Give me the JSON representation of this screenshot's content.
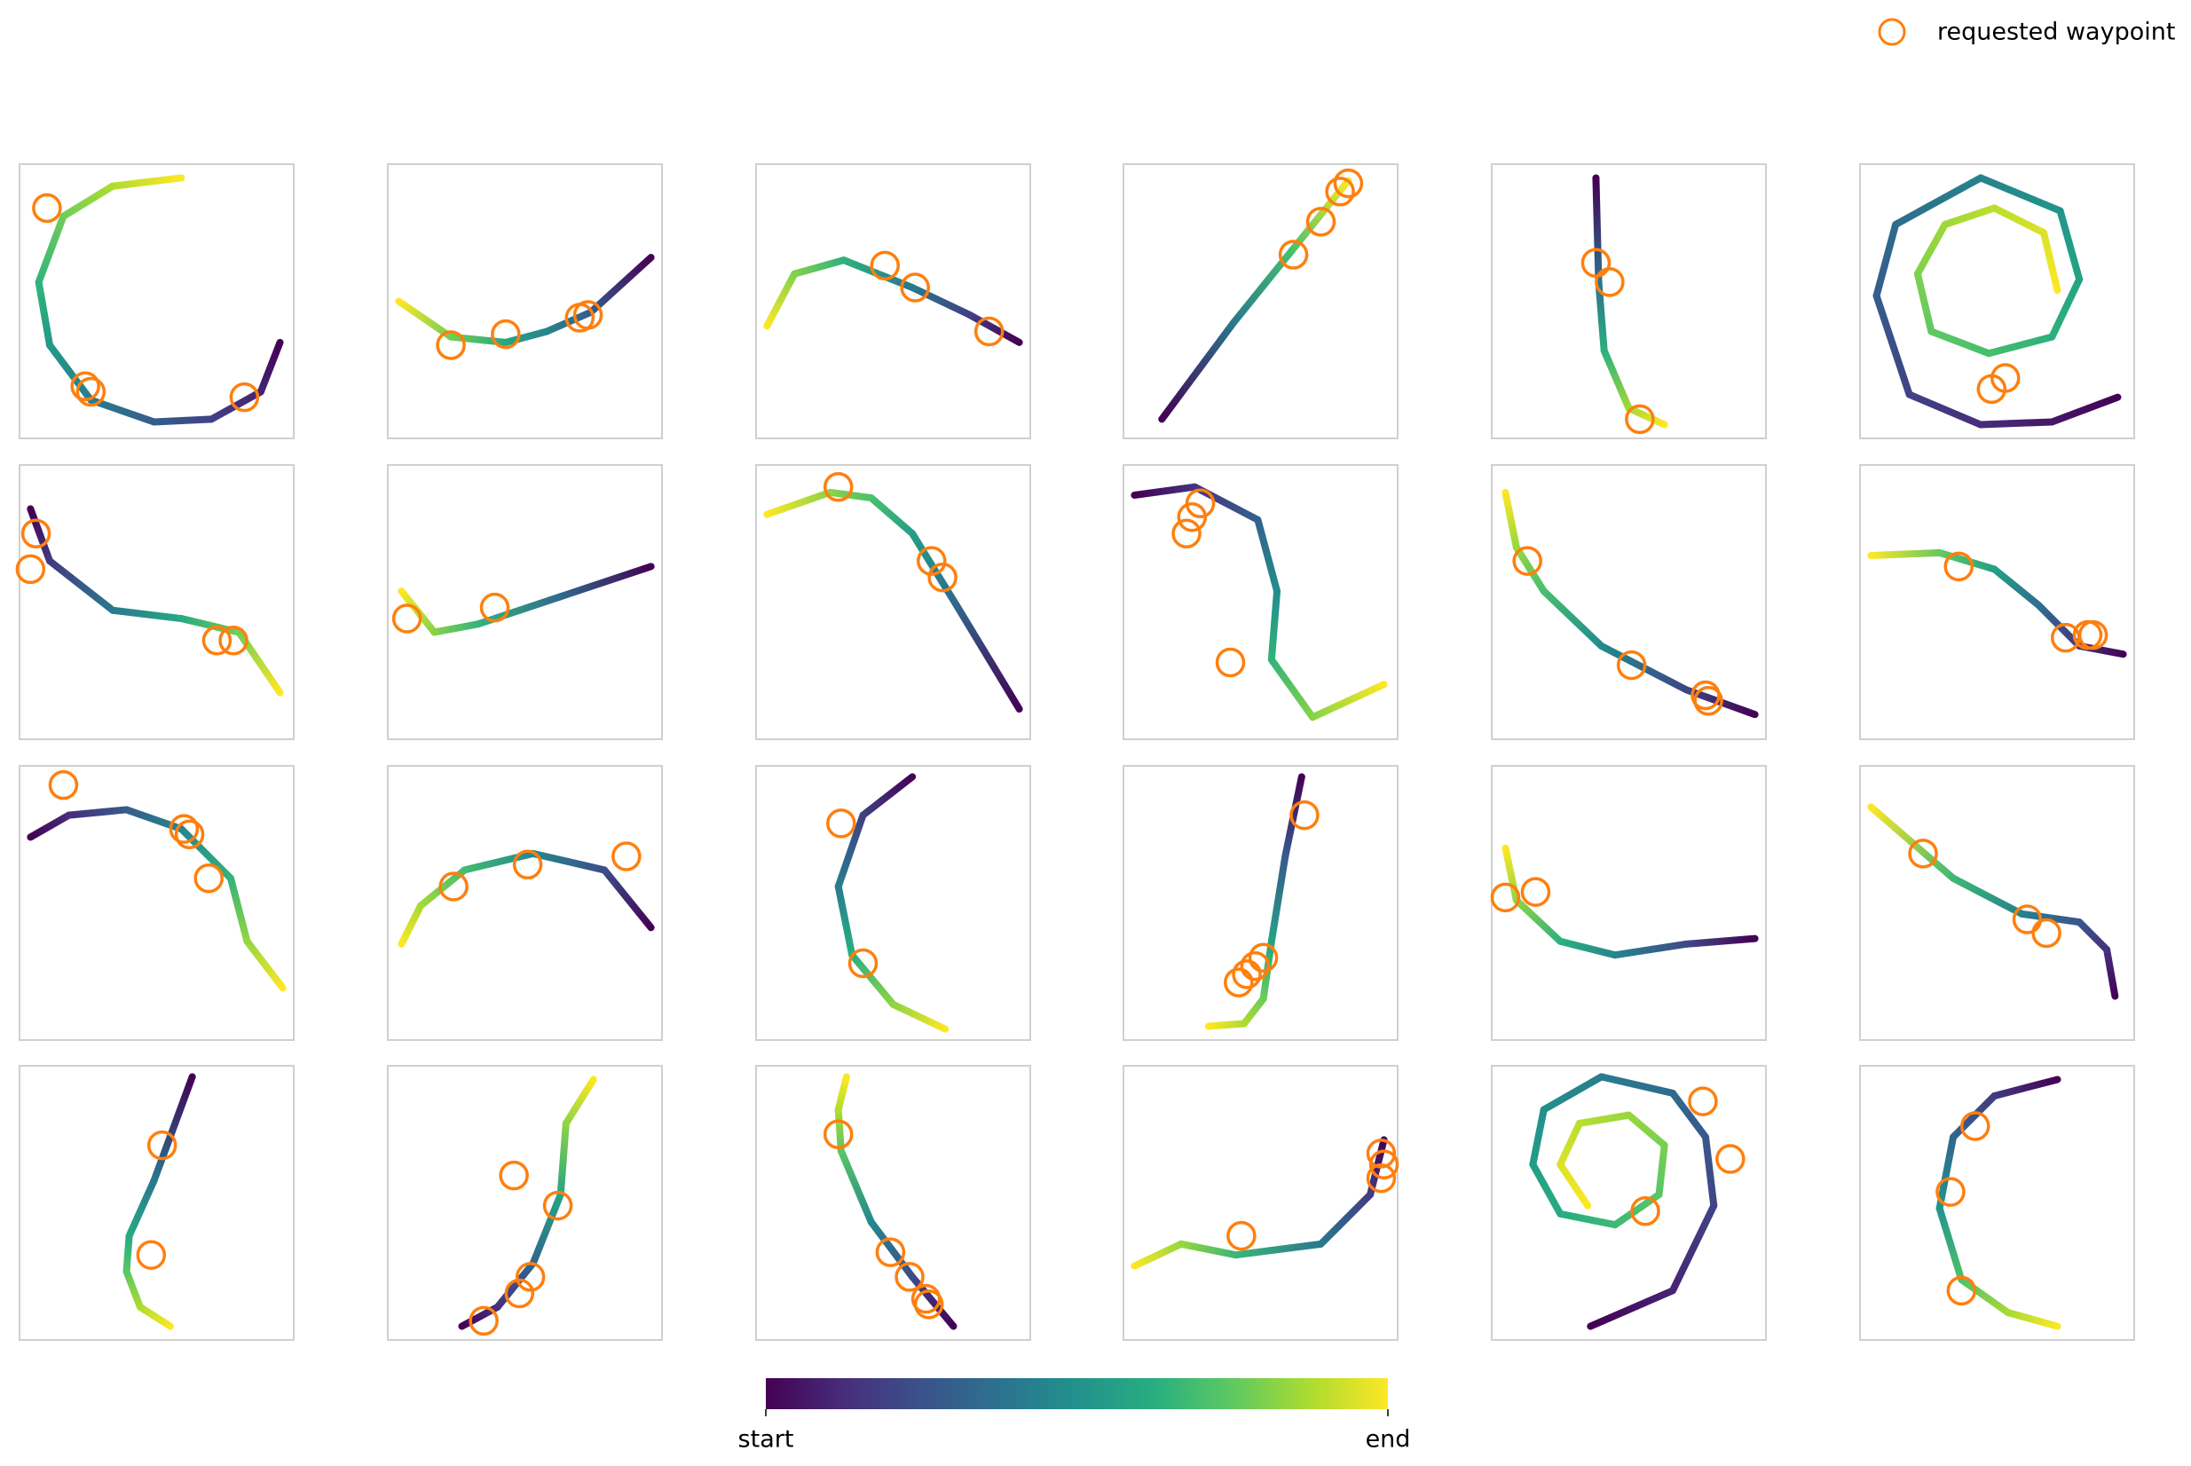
{
  "chart_data": [
    {
      "type": "line",
      "x": [
        0.95,
        0.88,
        0.7,
        0.49,
        0.26,
        0.11,
        0.07,
        0.16,
        0.34,
        0.59
      ],
      "y": [
        0.35,
        0.17,
        0.07,
        0.06,
        0.14,
        0.34,
        0.57,
        0.81,
        0.92,
        0.95
      ],
      "waypoints": {
        "x": [
          0.1,
          0.24,
          0.26,
          0.82
        ],
        "y": [
          0.84,
          0.19,
          0.17,
          0.15
        ]
      },
      "xlim": [
        0,
        1
      ],
      "ylim": [
        0,
        1
      ]
    },
    {
      "type": "line",
      "x": [
        0.96,
        0.74,
        0.58,
        0.43,
        0.23,
        0.04
      ],
      "y": [
        0.66,
        0.46,
        0.39,
        0.35,
        0.37,
        0.5
      ],
      "waypoints": {
        "x": [
          0.23,
          0.43,
          0.7,
          0.73
        ],
        "y": [
          0.34,
          0.38,
          0.44,
          0.45
        ]
      },
      "xlim": [
        0,
        1
      ],
      "ylim": [
        0,
        1
      ]
    },
    {
      "type": "line",
      "x": [
        0.96,
        0.78,
        0.57,
        0.32,
        0.14,
        0.04
      ],
      "y": [
        0.35,
        0.45,
        0.55,
        0.65,
        0.6,
        0.41
      ],
      "waypoints": {
        "x": [
          0.47,
          0.58,
          0.85
        ],
        "y": [
          0.63,
          0.55,
          0.39
        ]
      },
      "xlim": [
        0,
        1
      ],
      "ylim": [
        0,
        1
      ]
    },
    {
      "type": "line",
      "x": [
        0.14,
        0.4,
        0.61,
        0.82
      ],
      "y": [
        0.07,
        0.42,
        0.68,
        0.94
      ],
      "waypoints": {
        "x": [
          0.62,
          0.72,
          0.79,
          0.82
        ],
        "y": [
          0.67,
          0.79,
          0.9,
          0.93
        ]
      },
      "xlim": [
        0,
        1
      ],
      "ylim": [
        0,
        1
      ]
    },
    {
      "type": "line",
      "x": [
        0.38,
        0.39,
        0.41,
        0.5,
        0.63
      ],
      "y": [
        0.95,
        0.57,
        0.32,
        0.11,
        0.05
      ],
      "waypoints": {
        "x": [
          0.38,
          0.43,
          0.54
        ],
        "y": [
          0.64,
          0.57,
          0.07
        ]
      },
      "xlim": [
        0,
        1
      ],
      "ylim": [
        0,
        1
      ]
    },
    {
      "type": "line",
      "x": [
        0.94,
        0.7,
        0.44,
        0.18,
        0.06,
        0.13,
        0.44,
        0.73,
        0.8,
        0.7,
        0.47,
        0.26,
        0.21,
        0.31,
        0.49,
        0.67,
        0.72
      ],
      "y": [
        0.15,
        0.06,
        0.05,
        0.16,
        0.52,
        0.78,
        0.95,
        0.83,
        0.58,
        0.37,
        0.31,
        0.39,
        0.6,
        0.78,
        0.84,
        0.75,
        0.54
      ],
      "waypoints": {
        "x": [
          0.48,
          0.53
        ],
        "y": [
          0.18,
          0.22
        ]
      },
      "xlim": [
        0,
        1
      ],
      "ylim": [
        0,
        1
      ]
    },
    {
      "type": "line",
      "x": [
        0.04,
        0.11,
        0.34,
        0.59,
        0.8,
        0.95
      ],
      "y": [
        0.84,
        0.65,
        0.47,
        0.44,
        0.39,
        0.17
      ],
      "waypoints": {
        "x": [
          0.06,
          0.04,
          0.72,
          0.78
        ],
        "y": [
          0.75,
          0.62,
          0.36,
          0.36
        ]
      },
      "xlim": [
        0,
        1
      ],
      "ylim": [
        0,
        1
      ]
    },
    {
      "type": "line",
      "x": [
        0.96,
        0.63,
        0.33,
        0.17,
        0.05
      ],
      "y": [
        0.63,
        0.52,
        0.42,
        0.39,
        0.54
      ],
      "waypoints": {
        "x": [
          0.07,
          0.39
        ],
        "y": [
          0.44,
          0.48
        ]
      },
      "xlim": [
        0,
        1
      ],
      "ylim": [
        0,
        1
      ]
    },
    {
      "type": "line",
      "x": [
        0.96,
        0.73,
        0.57,
        0.42,
        0.27,
        0.04
      ],
      "y": [
        0.11,
        0.49,
        0.75,
        0.88,
        0.9,
        0.82
      ],
      "waypoints": {
        "x": [
          0.3,
          0.64,
          0.68
        ],
        "y": [
          0.92,
          0.65,
          0.59
        ]
      },
      "xlim": [
        0,
        1
      ],
      "ylim": [
        0,
        1
      ]
    },
    {
      "type": "line",
      "x": [
        0.04,
        0.26,
        0.49,
        0.56,
        0.54,
        0.69,
        0.95
      ],
      "y": [
        0.89,
        0.92,
        0.8,
        0.54,
        0.29,
        0.08,
        0.2
      ],
      "waypoints": {
        "x": [
          0.23,
          0.25,
          0.28,
          0.39
        ],
        "y": [
          0.75,
          0.81,
          0.86,
          0.28
        ]
      },
      "xlim": [
        0,
        1
      ],
      "ylim": [
        0,
        1
      ]
    },
    {
      "type": "line",
      "x": [
        0.96,
        0.71,
        0.4,
        0.19,
        0.09,
        0.05
      ],
      "y": [
        0.09,
        0.18,
        0.34,
        0.54,
        0.7,
        0.9
      ],
      "waypoints": {
        "x": [
          0.13,
          0.51,
          0.78,
          0.79
        ],
        "y": [
          0.65,
          0.27,
          0.16,
          0.14
        ]
      },
      "xlim": [
        0,
        1
      ],
      "ylim": [
        0,
        1
      ]
    },
    {
      "type": "line",
      "x": [
        0.96,
        0.8,
        0.65,
        0.49,
        0.29,
        0.04
      ],
      "y": [
        0.31,
        0.34,
        0.49,
        0.62,
        0.68,
        0.67
      ],
      "waypoints": {
        "x": [
          0.36,
          0.75,
          0.83,
          0.85
        ],
        "y": [
          0.63,
          0.37,
          0.38,
          0.38
        ]
      },
      "xlim": [
        0,
        1
      ],
      "ylim": [
        0,
        1
      ]
    },
    {
      "type": "line",
      "x": [
        0.04,
        0.18,
        0.39,
        0.59,
        0.77,
        0.83,
        0.96
      ],
      "y": [
        0.74,
        0.82,
        0.84,
        0.77,
        0.59,
        0.36,
        0.19
      ],
      "waypoints": {
        "x": [
          0.16,
          0.6,
          0.62,
          0.69
        ],
        "y": [
          0.93,
          0.77,
          0.75,
          0.59
        ]
      },
      "xlim": [
        0,
        1
      ],
      "ylim": [
        0,
        1
      ]
    },
    {
      "type": "line",
      "x": [
        0.96,
        0.79,
        0.53,
        0.28,
        0.12,
        0.05
      ],
      "y": [
        0.41,
        0.62,
        0.68,
        0.62,
        0.49,
        0.35
      ],
      "waypoints": {
        "x": [
          0.24,
          0.51,
          0.87
        ],
        "y": [
          0.56,
          0.64,
          0.67
        ]
      },
      "xlim": [
        0,
        1
      ],
      "ylim": [
        0,
        1
      ]
    },
    {
      "type": "line",
      "x": [
        0.57,
        0.39,
        0.3,
        0.35,
        0.5,
        0.69
      ],
      "y": [
        0.96,
        0.82,
        0.56,
        0.31,
        0.13,
        0.04
      ],
      "waypoints": {
        "x": [
          0.31,
          0.39
        ],
        "y": [
          0.79,
          0.28
        ]
      },
      "xlim": [
        0,
        1
      ],
      "ylim": [
        0,
        1
      ]
    },
    {
      "type": "line",
      "x": [
        0.65,
        0.59,
        0.54,
        0.51,
        0.44,
        0.31
      ],
      "y": [
        0.96,
        0.67,
        0.36,
        0.15,
        0.06,
        0.05
      ],
      "waypoints": {
        "x": [
          0.66,
          0.51,
          0.48,
          0.45,
          0.42
        ],
        "y": [
          0.82,
          0.3,
          0.27,
          0.24,
          0.21
        ]
      },
      "xlim": [
        0,
        1
      ],
      "ylim": [
        0,
        1
      ]
    },
    {
      "type": "line",
      "x": [
        0.96,
        0.71,
        0.45,
        0.25,
        0.09,
        0.05
      ],
      "y": [
        0.37,
        0.35,
        0.31,
        0.36,
        0.51,
        0.7
      ],
      "waypoints": {
        "x": [
          0.05,
          0.16
        ],
        "y": [
          0.52,
          0.54
        ]
      },
      "xlim": [
        0,
        1
      ],
      "ylim": [
        0,
        1
      ]
    },
    {
      "type": "line",
      "x": [
        0.93,
        0.9,
        0.8,
        0.59,
        0.34,
        0.04
      ],
      "y": [
        0.16,
        0.33,
        0.43,
        0.46,
        0.59,
        0.85
      ],
      "waypoints": {
        "x": [
          0.23,
          0.61,
          0.68
        ],
        "y": [
          0.68,
          0.44,
          0.39
        ]
      },
      "xlim": [
        0,
        1
      ],
      "ylim": [
        0,
        1
      ]
    },
    {
      "type": "line",
      "x": [
        0.63,
        0.49,
        0.4,
        0.39,
        0.44,
        0.55
      ],
      "y": [
        0.96,
        0.58,
        0.38,
        0.25,
        0.12,
        0.05
      ],
      "waypoints": {
        "x": [
          0.52,
          0.48
        ],
        "y": [
          0.71,
          0.31
        ]
      },
      "xlim": [
        0,
        1
      ],
      "ylim": [
        0,
        1
      ]
    },
    {
      "type": "line",
      "x": [
        0.27,
        0.4,
        0.53,
        0.63,
        0.65,
        0.75
      ],
      "y": [
        0.05,
        0.12,
        0.28,
        0.53,
        0.79,
        0.95
      ],
      "waypoints": {
        "x": [
          0.35,
          0.48,
          0.52,
          0.62,
          0.46
        ],
        "y": [
          0.07,
          0.17,
          0.23,
          0.49,
          0.6
        ]
      },
      "xlim": [
        0,
        1
      ],
      "ylim": [
        0,
        1
      ]
    },
    {
      "type": "line",
      "x": [
        0.72,
        0.57,
        0.42,
        0.31,
        0.3,
        0.33
      ],
      "y": [
        0.05,
        0.23,
        0.43,
        0.69,
        0.84,
        0.96
      ],
      "waypoints": {
        "x": [
          0.3,
          0.49,
          0.56,
          0.62,
          0.63
        ],
        "y": [
          0.75,
          0.32,
          0.23,
          0.15,
          0.13
        ]
      },
      "xlim": [
        0,
        1
      ],
      "ylim": [
        0,
        1
      ]
    },
    {
      "type": "line",
      "x": [
        0.95,
        0.9,
        0.72,
        0.41,
        0.21,
        0.04
      ],
      "y": [
        0.73,
        0.53,
        0.35,
        0.31,
        0.35,
        0.27
      ],
      "waypoints": {
        "x": [
          0.43,
          0.94,
          0.95,
          0.94
        ],
        "y": [
          0.38,
          0.68,
          0.64,
          0.59
        ]
      },
      "xlim": [
        0,
        1
      ],
      "ylim": [
        0,
        1
      ]
    },
    {
      "type": "line",
      "x": [
        0.36,
        0.66,
        0.81,
        0.78,
        0.66,
        0.4,
        0.19,
        0.15,
        0.25,
        0.45,
        0.61,
        0.63,
        0.5,
        0.32,
        0.25,
        0.35
      ],
      "y": [
        0.05,
        0.18,
        0.49,
        0.74,
        0.9,
        0.96,
        0.84,
        0.64,
        0.46,
        0.42,
        0.53,
        0.71,
        0.82,
        0.79,
        0.64,
        0.49
      ],
      "waypoints": {
        "x": [
          0.77,
          0.87,
          0.56
        ],
        "y": [
          0.87,
          0.66,
          0.47
        ]
      },
      "xlim": [
        0,
        1
      ],
      "ylim": [
        0,
        1
      ]
    },
    {
      "type": "line",
      "x": [
        0.72,
        0.49,
        0.34,
        0.29,
        0.37,
        0.54,
        0.72
      ],
      "y": [
        0.95,
        0.89,
        0.74,
        0.48,
        0.22,
        0.1,
        0.05
      ],
      "waypoints": {
        "x": [
          0.42,
          0.33,
          0.37
        ],
        "y": [
          0.78,
          0.54,
          0.18
        ]
      },
      "xlim": [
        0,
        1
      ],
      "ylim": [
        0,
        1
      ]
    }
  ],
  "legend": {
    "name": "requested waypoint",
    "color": "#ff7f0e",
    "position": "upper right"
  },
  "colormap": "viridis",
  "colorbar": {
    "lim": [
      0,
      1
    ],
    "ticks": [
      {
        "value": 0,
        "label": "start"
      },
      {
        "value": 1,
        "label": "end"
      }
    ]
  }
}
